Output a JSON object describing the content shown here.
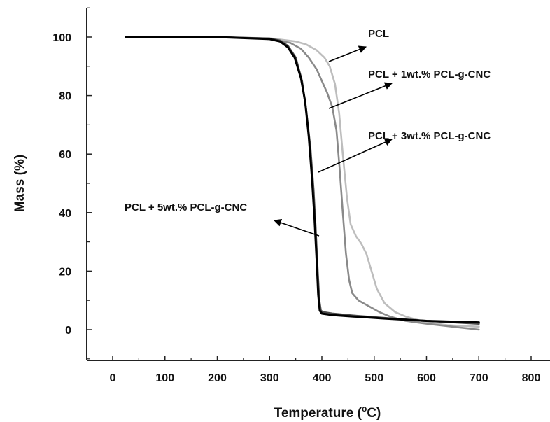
{
  "chart_data": {
    "type": "line",
    "xlabel_prefix": "Temperature (",
    "xlabel_sup": "o",
    "xlabel_suffix": "C)",
    "ylabel": "Mass (%)",
    "xlim": [
      -50,
      820
    ],
    "ylim": [
      -10,
      110
    ],
    "xticks": [
      0,
      100,
      200,
      300,
      400,
      500,
      600,
      700,
      800
    ],
    "yticks": [
      0,
      20,
      40,
      60,
      80,
      100
    ],
    "grid": false,
    "series": [
      {
        "name": "PCL",
        "color": "#bdbdbd",
        "x": [
          25,
          100,
          200,
          300,
          350,
          370,
          390,
          405,
          415,
          425,
          433,
          440,
          448,
          455,
          465,
          475,
          485,
          495,
          505,
          520,
          540,
          560,
          580,
          600,
          640,
          700
        ],
        "y": [
          100,
          100,
          100,
          99.6,
          98.5,
          97.5,
          95.5,
          93,
          90,
          84,
          74,
          60,
          45,
          36,
          32,
          29.5,
          26,
          20,
          14,
          9,
          6,
          4.5,
          3.5,
          2.5,
          1.5,
          1
        ]
      },
      {
        "name": "PCL + 1wt.% PCL-g-CNC",
        "color": "#8a8a8a",
        "x": [
          25,
          100,
          200,
          300,
          340,
          360,
          375,
          390,
          400,
          410,
          420,
          428,
          434,
          440,
          446,
          452,
          458,
          470,
          490,
          510,
          530,
          560,
          600,
          650,
          700
        ],
        "y": [
          100,
          100,
          100,
          99.5,
          98,
          96,
          93,
          89,
          85,
          81,
          76,
          68,
          55,
          40,
          26,
          17,
          12.5,
          10,
          8,
          6,
          4.5,
          3,
          2,
          1,
          0
        ]
      },
      {
        "name": "PCL + 3wt.% PCL-g-CNC",
        "color": "#4a4a4a",
        "x": [
          25,
          100,
          200,
          300,
          320,
          335,
          350,
          362,
          370,
          378,
          384,
          388,
          392,
          395,
          398,
          402,
          420,
          460,
          520,
          600,
          700
        ],
        "y": [
          100,
          100,
          100,
          99.5,
          98.8,
          97,
          93,
          85,
          75,
          62,
          48,
          35,
          20,
          10,
          6.5,
          6,
          5.5,
          4.8,
          4,
          3,
          2
        ]
      },
      {
        "name": "PCL + 5wt.% PCL-g-CNC",
        "color": "#000000",
        "x": [
          25,
          100,
          200,
          300,
          320,
          335,
          348,
          360,
          368,
          375,
          381,
          386,
          390,
          393,
          396,
          400,
          420,
          460,
          520,
          600,
          700
        ],
        "y": [
          100,
          100,
          100,
          99.3,
          98.5,
          96.5,
          93,
          86,
          78,
          66,
          52,
          38,
          24,
          12,
          6.5,
          5.5,
          5,
          4.5,
          3.8,
          3,
          2.5
        ]
      }
    ],
    "annotations": [
      {
        "text": "PCL",
        "position": "upper-right of curves"
      },
      {
        "text": "PCL + 1wt.% PCL-g-CNC",
        "position": "right"
      },
      {
        "text": "PCL + 3wt.% PCL-g-CNC",
        "position": "right"
      },
      {
        "text": "PCL + 5wt.% PCL-g-CNC",
        "position": "left"
      }
    ]
  }
}
